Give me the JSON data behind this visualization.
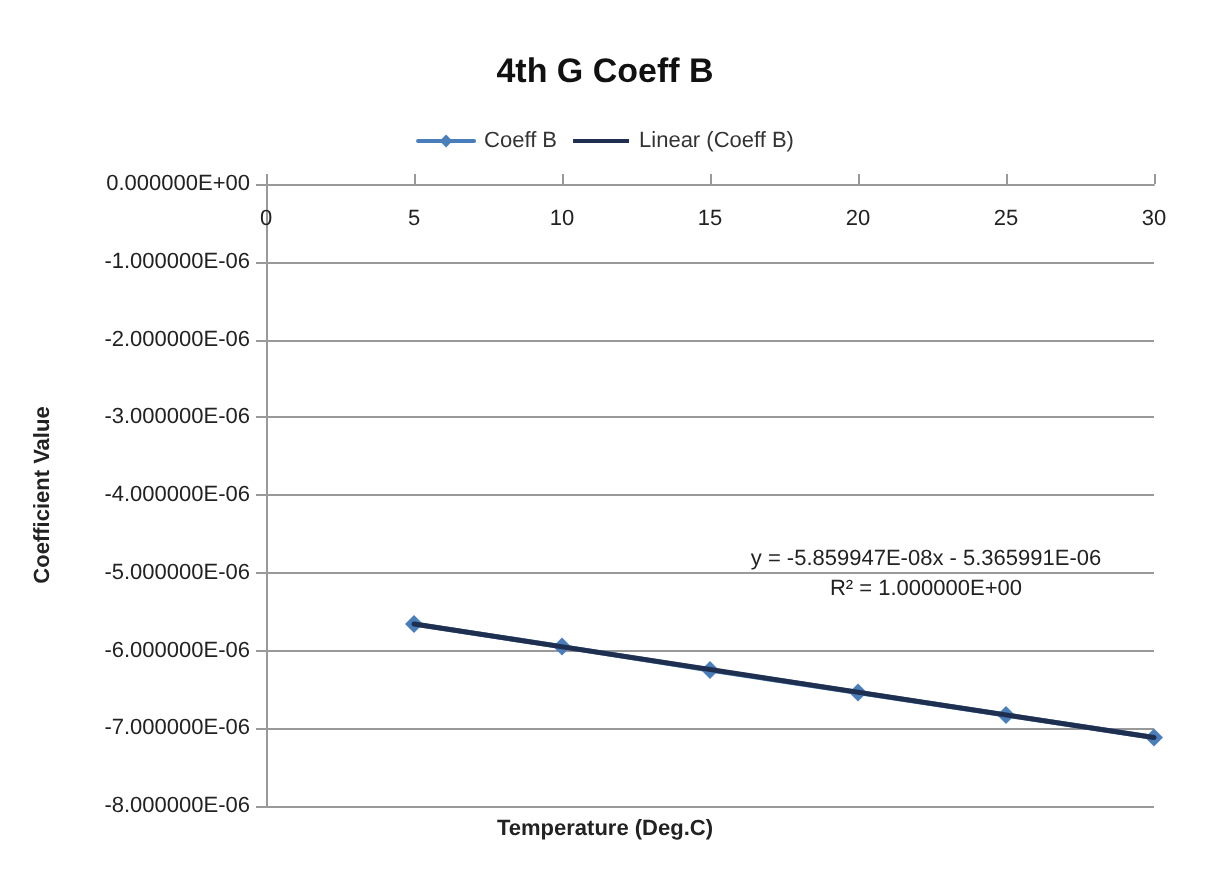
{
  "chart_data": {
    "type": "line",
    "title": "4th G Coeff B",
    "xlabel": "Temperature (Deg.C)",
    "ylabel": "Coefficient Value",
    "x": [
      5,
      10,
      15,
      20,
      25,
      30
    ],
    "series": [
      {
        "name": "Coeff B",
        "color": "#4a7ebb",
        "marker": "diamond",
        "values": [
          -5.66e-06,
          -5.95e-06,
          -6.25e-06,
          -6.54e-06,
          -6.83e-06,
          -7.12e-06
        ]
      },
      {
        "name": "Linear (Coeff B)",
        "type": "line",
        "color": "#1f2f4f",
        "marker": "none",
        "x": [
          5,
          30
        ],
        "values": [
          -5.66e-06,
          -7.12e-06
        ]
      }
    ],
    "xlim": [
      0,
      30
    ],
    "xticks": [
      0,
      5,
      10,
      15,
      20,
      25,
      30
    ],
    "ylim": [
      -8e-06,
      0
    ],
    "yticks": [
      {
        "value": 0,
        "label": "0.000000E+00"
      },
      {
        "value": -1e-06,
        "label": "-1.000000E-06"
      },
      {
        "value": -2e-06,
        "label": "-2.000000E-06"
      },
      {
        "value": -3e-06,
        "label": "-3.000000E-06"
      },
      {
        "value": -4e-06,
        "label": "-4.000000E-06"
      },
      {
        "value": -5e-06,
        "label": "-5.000000E-06"
      },
      {
        "value": -6e-06,
        "label": "-6.000000E-06"
      },
      {
        "value": -7e-06,
        "label": "-7.000000E-06"
      },
      {
        "value": -8e-06,
        "label": "-8.000000E-06"
      }
    ],
    "annotations": [
      "y = -5.859947E-08x - 5.365991E-06",
      "R² = 1.000000E+00"
    ],
    "grid": "y",
    "legend": "top",
    "line_style": "solid"
  }
}
